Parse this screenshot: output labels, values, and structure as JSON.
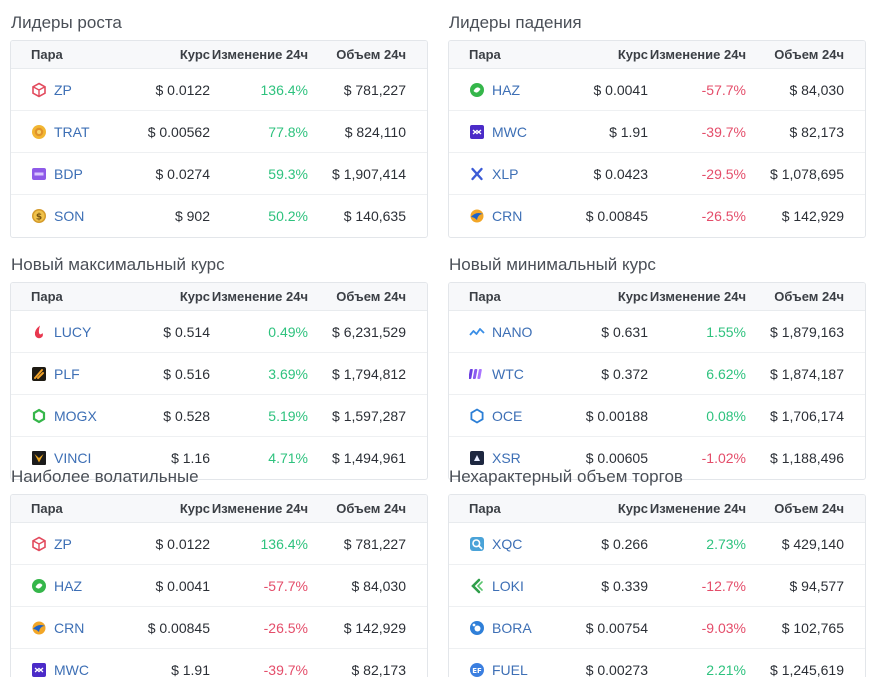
{
  "colors": {
    "positive": "#2ec27e",
    "negative": "#e44d6a",
    "link": "#3d6fb5"
  },
  "headers": {
    "pair": "Пара",
    "price": "Курс",
    "change": "Изменение 24ч",
    "volume": "Объем 24ч"
  },
  "panels": [
    {
      "title": "Лидеры роста",
      "rows": [
        {
          "symbol": "ZP",
          "icon": "zp-cube-icon",
          "price": "$ 0.0122",
          "change": "136.4%",
          "dir": "pos",
          "volume": "$ 781,227"
        },
        {
          "symbol": "TRAT",
          "icon": "trat-coin-icon",
          "price": "$ 0.00562",
          "change": "77.8%",
          "dir": "pos",
          "volume": "$ 824,110"
        },
        {
          "symbol": "BDP",
          "icon": "bdp-badge-icon",
          "price": "$ 0.0274",
          "change": "59.3%",
          "dir": "pos",
          "volume": "$ 1,907,414"
        },
        {
          "symbol": "SON",
          "icon": "son-coin-icon",
          "price": "$ 902",
          "change": "50.2%",
          "dir": "pos",
          "volume": "$ 140,635"
        }
      ]
    },
    {
      "title": "Лидеры падения",
      "rows": [
        {
          "symbol": "HAZ",
          "icon": "haz-swirl-icon",
          "price": "$ 0.0041",
          "change": "-57.7%",
          "dir": "neg",
          "volume": "$ 84,030"
        },
        {
          "symbol": "MWC",
          "icon": "mwc-square-icon",
          "price": "$ 1.91",
          "change": "-39.7%",
          "dir": "neg",
          "volume": "$ 82,173"
        },
        {
          "symbol": "XLP",
          "icon": "xlp-x-icon",
          "price": "$ 0.0423",
          "change": "-29.5%",
          "dir": "neg",
          "volume": "$ 1,078,695"
        },
        {
          "symbol": "CRN",
          "icon": "crn-bird-icon",
          "price": "$ 0.00845",
          "change": "-26.5%",
          "dir": "neg",
          "volume": "$ 142,929"
        }
      ]
    },
    {
      "title": "Новый максимальный курс",
      "rows": [
        {
          "symbol": "LUCY",
          "icon": "lucy-flame-icon",
          "price": "$ 0.514",
          "change": "0.49%",
          "dir": "pos",
          "volume": "$ 6,231,529"
        },
        {
          "symbol": "PLF",
          "icon": "plf-square-icon",
          "price": "$ 0.516",
          "change": "3.69%",
          "dir": "pos",
          "volume": "$ 1,794,812"
        },
        {
          "symbol": "MOGX",
          "icon": "mogx-ring-icon",
          "price": "$ 0.528",
          "change": "5.19%",
          "dir": "pos",
          "volume": "$ 1,597,287"
        },
        {
          "symbol": "VINCI",
          "icon": "vinci-v-icon",
          "price": "$ 1.16",
          "change": "4.71%",
          "dir": "pos",
          "volume": "$ 1,494,961"
        }
      ]
    },
    {
      "title": "Новый минимальный курс",
      "rows": [
        {
          "symbol": "NANO",
          "icon": "nano-wave-icon",
          "price": "$ 0.631",
          "change": "1.55%",
          "dir": "pos",
          "volume": "$ 1,879,163"
        },
        {
          "symbol": "WTC",
          "icon": "wtc-bars-icon",
          "price": "$ 0.372",
          "change": "6.62%",
          "dir": "pos",
          "volume": "$ 1,874,187"
        },
        {
          "symbol": "OCE",
          "icon": "oce-hexagon-icon",
          "price": "$ 0.00188",
          "change": "0.08%",
          "dir": "pos",
          "volume": "$ 1,706,174"
        },
        {
          "symbol": "XSR",
          "icon": "xsr-square-icon",
          "price": "$ 0.00605",
          "change": "-1.02%",
          "dir": "neg",
          "volume": "$ 1,188,496"
        }
      ]
    },
    {
      "title": "Наиболее волатильные",
      "rows": [
        {
          "symbol": "ZP",
          "icon": "zp-cube-icon",
          "price": "$ 0.0122",
          "change": "136.4%",
          "dir": "pos",
          "volume": "$ 781,227"
        },
        {
          "symbol": "HAZ",
          "icon": "haz-swirl-icon",
          "price": "$ 0.0041",
          "change": "-57.7%",
          "dir": "neg",
          "volume": "$ 84,030"
        },
        {
          "symbol": "CRN",
          "icon": "crn-bird-icon",
          "price": "$ 0.00845",
          "change": "-26.5%",
          "dir": "neg",
          "volume": "$ 142,929"
        },
        {
          "symbol": "MWC",
          "icon": "mwc-square-icon",
          "price": "$ 1.91",
          "change": "-39.7%",
          "dir": "neg",
          "volume": "$ 82,173"
        }
      ]
    },
    {
      "title": "Нехарактерный объем торгов",
      "rows": [
        {
          "symbol": "XQC",
          "icon": "xqc-search-icon",
          "price": "$ 0.266",
          "change": "2.73%",
          "dir": "pos",
          "volume": "$ 429,140"
        },
        {
          "symbol": "LOKI",
          "icon": "loki-chevron-icon",
          "price": "$ 0.339",
          "change": "-12.7%",
          "dir": "neg",
          "volume": "$ 94,577"
        },
        {
          "symbol": "BORA",
          "icon": "bora-circle-icon",
          "price": "$ 0.00754",
          "change": "-9.03%",
          "dir": "neg",
          "volume": "$ 102,765"
        },
        {
          "symbol": "FUEL",
          "icon": "fuel-circle-icon",
          "price": "$ 0.00273",
          "change": "2.21%",
          "dir": "pos",
          "volume": "$ 1,245,619"
        }
      ]
    }
  ]
}
